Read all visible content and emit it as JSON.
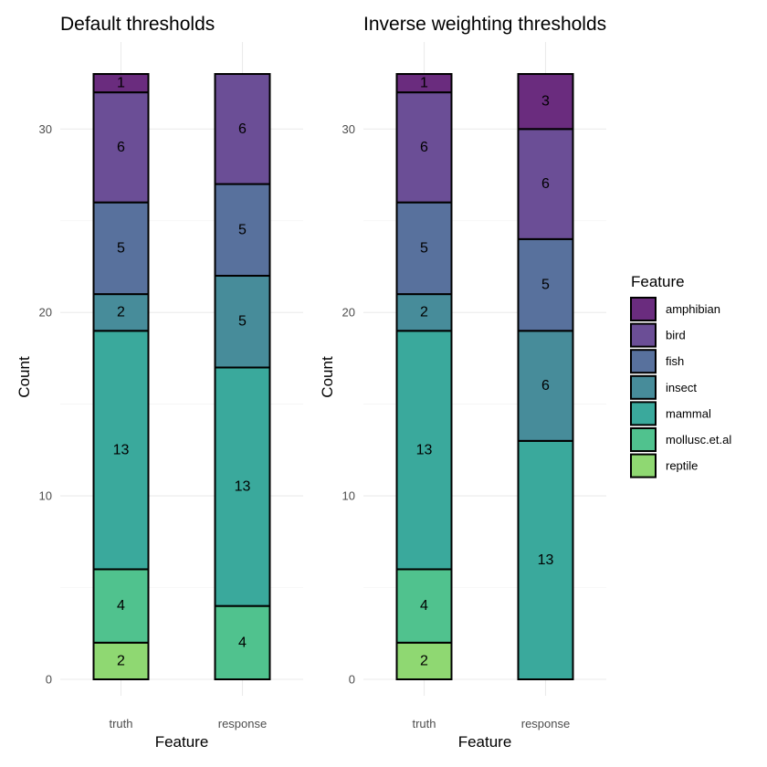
{
  "chart_data": {
    "type": "bar",
    "stacked": true,
    "grid": true,
    "legend_position": "right",
    "legend": {
      "title": "Feature",
      "entries": [
        "amphibian",
        "bird",
        "fish",
        "insect",
        "mammal",
        "mollusc.et.al",
        "reptile"
      ]
    },
    "colors": {
      "amphibian": "#6a2c7e",
      "bird": "#6b4e96",
      "fish": "#58719d",
      "insect": "#478c9a",
      "mammal": "#3aa99c",
      "mollusc.et.al": "#50c28e",
      "reptile": "#8fd872"
    },
    "panels": [
      {
        "title": "Default thresholds",
        "xlabel": "Feature",
        "ylabel": "Count",
        "ylim": [
          0,
          33
        ],
        "yticks": [
          0,
          10,
          20,
          30
        ],
        "categories": [
          "truth",
          "response"
        ],
        "bars": [
          {
            "category": "truth",
            "segments": [
              {
                "class": "reptile",
                "value": 2
              },
              {
                "class": "mollusc.et.al",
                "value": 4
              },
              {
                "class": "mammal",
                "value": 13
              },
              {
                "class": "insect",
                "value": 2
              },
              {
                "class": "fish",
                "value": 5
              },
              {
                "class": "bird",
                "value": 6
              },
              {
                "class": "amphibian",
                "value": 1
              }
            ]
          },
          {
            "category": "response",
            "segments": [
              {
                "class": "mollusc.et.al",
                "value": 4
              },
              {
                "class": "mammal",
                "value": 13
              },
              {
                "class": "insect",
                "value": 5
              },
              {
                "class": "fish",
                "value": 5
              },
              {
                "class": "bird",
                "value": 6
              }
            ]
          }
        ]
      },
      {
        "title": "Inverse weighting thresholds",
        "xlabel": "Feature",
        "ylabel": "Count",
        "ylim": [
          0,
          33
        ],
        "yticks": [
          0,
          10,
          20,
          30
        ],
        "categories": [
          "truth",
          "response"
        ],
        "bars": [
          {
            "category": "truth",
            "segments": [
              {
                "class": "reptile",
                "value": 2
              },
              {
                "class": "mollusc.et.al",
                "value": 4
              },
              {
                "class": "mammal",
                "value": 13
              },
              {
                "class": "insect",
                "value": 2
              },
              {
                "class": "fish",
                "value": 5
              },
              {
                "class": "bird",
                "value": 6
              },
              {
                "class": "amphibian",
                "value": 1
              }
            ]
          },
          {
            "category": "response",
            "segments": [
              {
                "class": "mammal",
                "value": 13
              },
              {
                "class": "insect",
                "value": 6
              },
              {
                "class": "fish",
                "value": 5
              },
              {
                "class": "bird",
                "value": 6
              },
              {
                "class": "amphibian",
                "value": 3
              }
            ]
          }
        ]
      }
    ]
  }
}
